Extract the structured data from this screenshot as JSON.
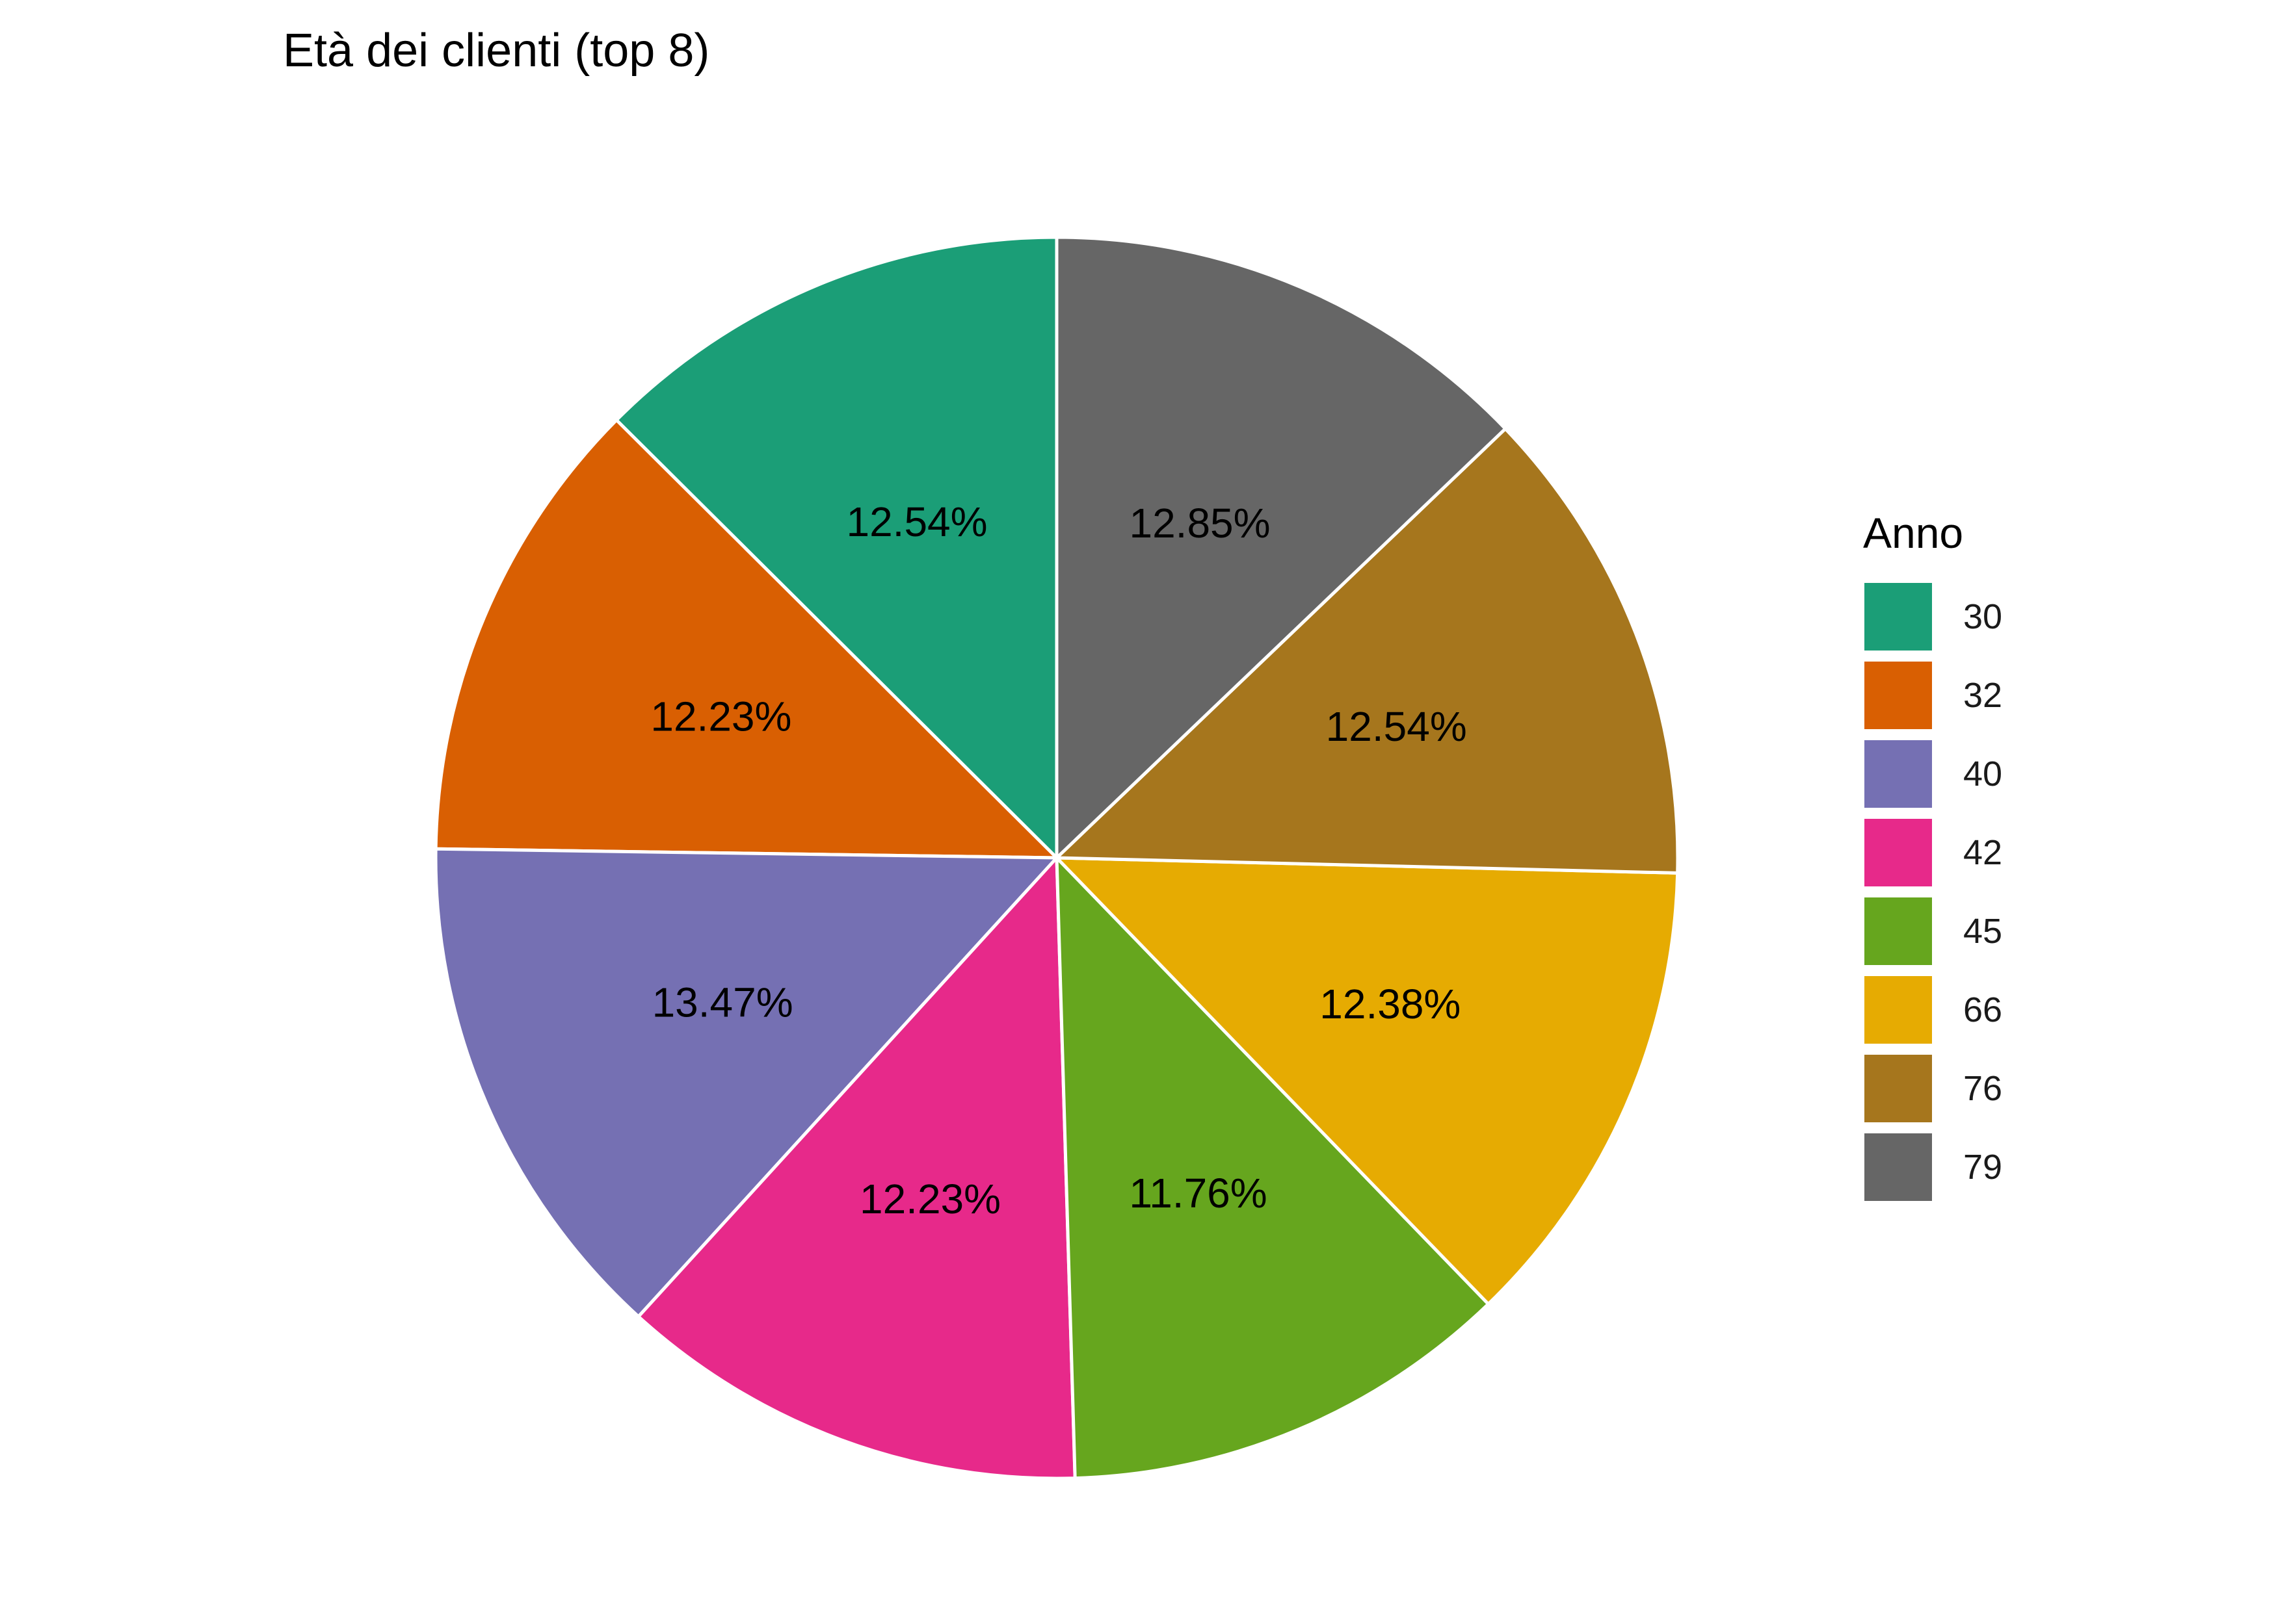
{
  "chart_data": {
    "type": "pie",
    "title": "Età dei clienti (top 8)",
    "legend": {
      "title": "Anno",
      "placement": "right"
    },
    "start": "12 o'clock",
    "direction": "counter-clockwise",
    "slices": [
      {
        "label": "30",
        "value": 12.54,
        "value_label": "12.54%",
        "color": "#1B9E77"
      },
      {
        "label": "32",
        "value": 12.23,
        "value_label": "12.23%",
        "color": "#D95F02"
      },
      {
        "label": "40",
        "value": 13.47,
        "value_label": "13.47%",
        "color": "#7570B3"
      },
      {
        "label": "42",
        "value": 12.23,
        "value_label": "12.23%",
        "color": "#E7298A"
      },
      {
        "label": "45",
        "value": 11.76,
        "value_label": "11.76%",
        "color": "#66A61E"
      },
      {
        "label": "66",
        "value": 12.38,
        "value_label": "12.38%",
        "color": "#E6AB02"
      },
      {
        "label": "76",
        "value": 12.54,
        "value_label": "12.54%",
        "color": "#A6761D"
      },
      {
        "label": "79",
        "value": 12.85,
        "value_label": "12.85%",
        "color": "#666666"
      }
    ]
  }
}
